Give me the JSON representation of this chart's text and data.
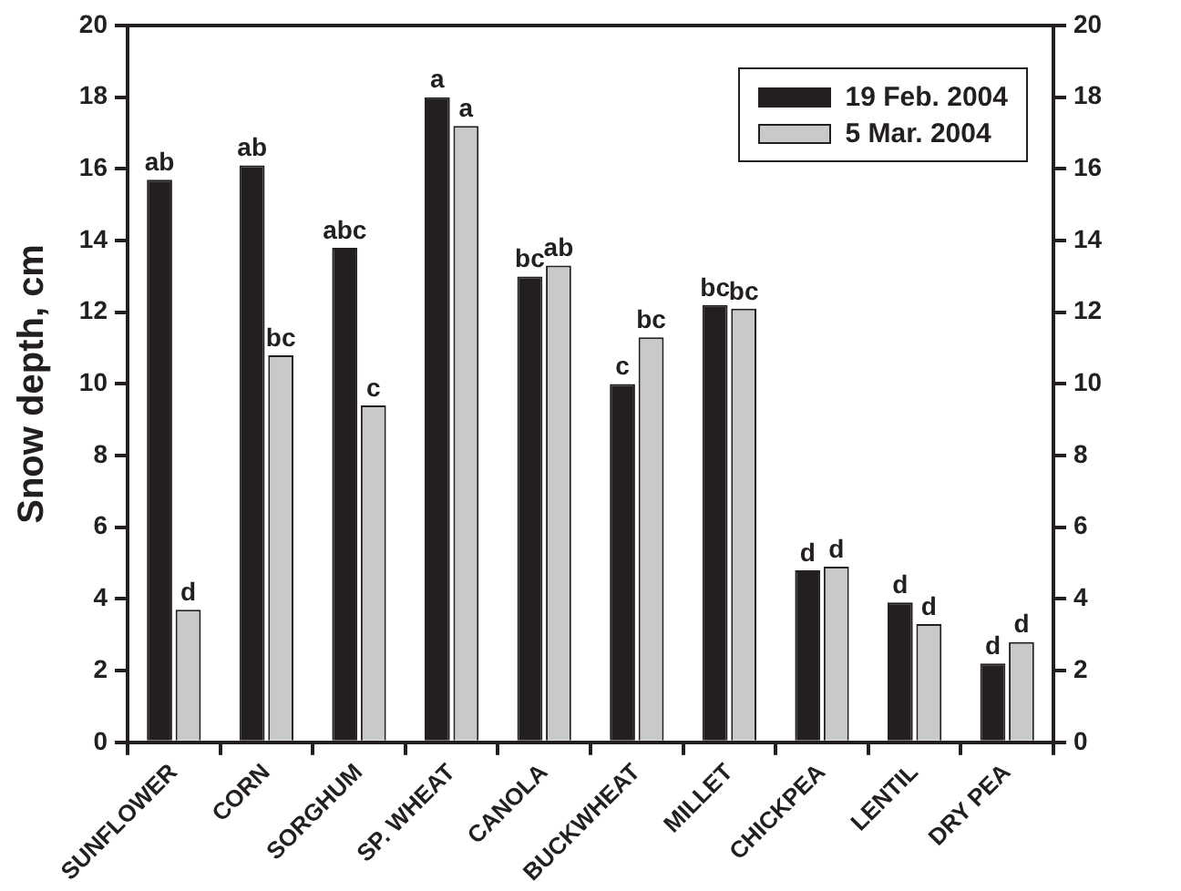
{
  "chart_data": {
    "type": "bar",
    "ylabel": "Snow depth, cm",
    "categories": [
      "SUNFLOWER",
      "CORN",
      "SORGHUM",
      "SP. WHEAT",
      "CANOLA",
      "BUCKWHEAT",
      "MILLET",
      "CHICKPEA",
      "LENTIL",
      "DRY PEA"
    ],
    "series": [
      {
        "name": "19 Feb. 2004",
        "color": "#231f20",
        "values": [
          15.7,
          16.1,
          13.8,
          18.0,
          13.0,
          10.0,
          12.2,
          4.8,
          3.9,
          2.2
        ],
        "value_labels": [
          "ab",
          "ab",
          "abc",
          "a",
          "bc",
          "c",
          "bc",
          "d",
          "d",
          "d"
        ]
      },
      {
        "name": "5 Mar. 2004",
        "color": "#c8c9cb",
        "values": [
          3.7,
          10.8,
          9.4,
          17.2,
          13.3,
          11.3,
          12.1,
          4.9,
          3.3,
          2.8
        ],
        "value_labels": [
          "d",
          "bc",
          "c",
          "a",
          "ab",
          "bc",
          "bc",
          "d",
          "d",
          "d"
        ]
      }
    ],
    "ylim": [
      0,
      20
    ],
    "yticks": [
      0,
      2,
      4,
      6,
      8,
      10,
      12,
      14,
      16,
      18,
      20
    ],
    "y2lim": [
      0,
      20
    ],
    "y2ticks": [
      0,
      2,
      4,
      6,
      8,
      10,
      12,
      14,
      16,
      18,
      20
    ],
    "legend": "top right",
    "grid": false
  }
}
